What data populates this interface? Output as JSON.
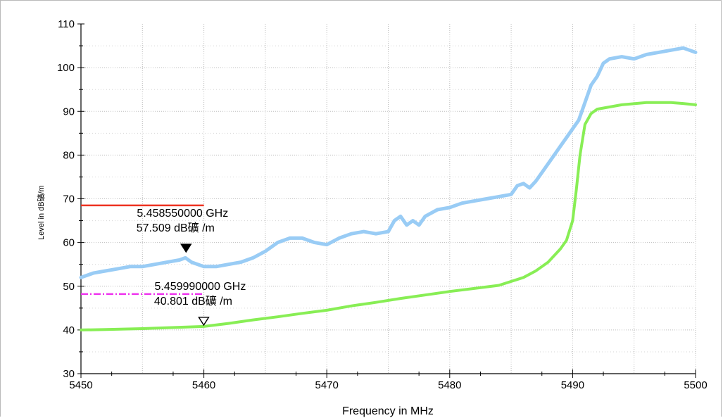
{
  "chart_data": {
    "type": "line",
    "xlabel": "Frequency in MHz",
    "ylabel": "Level in dB礦/m",
    "xlim": [
      5450,
      5500
    ],
    "ylim": [
      30,
      110
    ],
    "x_ticks": [
      "5450",
      "5460",
      "5470",
      "5480",
      "5490",
      "5500"
    ],
    "y_ticks": [
      "30",
      "40",
      "50",
      "60",
      "70",
      "80",
      "90",
      "100",
      "110"
    ],
    "grid": true,
    "series": [
      {
        "color": "#99ccf5",
        "x": [
          5450,
          5451,
          5452,
          5453,
          5454,
          5455,
          5456,
          5457,
          5458,
          5458.5,
          5459,
          5460,
          5461,
          5462,
          5463,
          5464,
          5465,
          5466,
          5467,
          5468,
          5469,
          5470,
          5471,
          5472,
          5473,
          5474,
          5475,
          5475.5,
          5476,
          5476.5,
          5477,
          5477.5,
          5478,
          5479,
          5480,
          5481,
          5482,
          5483,
          5484,
          5485,
          5485.5,
          5486,
          5486.5,
          5487,
          5487.5,
          5488,
          5488.5,
          5489,
          5489.5,
          5490,
          5490.5,
          5491,
          5491.5,
          5492,
          5492.5,
          5493,
          5494,
          5495,
          5496,
          5497,
          5498,
          5499,
          5499.5,
          5500
        ],
        "values": [
          52,
          53,
          53.5,
          54,
          54.5,
          54.5,
          55,
          55.5,
          56,
          56.5,
          55.5,
          54.5,
          54.5,
          55,
          55.5,
          56.5,
          58,
          60,
          61,
          61,
          60,
          59.5,
          61,
          62,
          62.5,
          62,
          62.5,
          65,
          66,
          64,
          65,
          64,
          66,
          67.5,
          68,
          69,
          69.5,
          70,
          70.5,
          71,
          73,
          73.5,
          72.5,
          74,
          76,
          78,
          80,
          82,
          84,
          86,
          88,
          92,
          96,
          98,
          101,
          102,
          102.5,
          102,
          103,
          103.5,
          104,
          104.5,
          104,
          103.5
        ]
      },
      {
        "color": "#88ee55",
        "x": [
          5450,
          5452,
          5455,
          5458,
          5460,
          5462,
          5464,
          5466,
          5468,
          5470,
          5472,
          5474,
          5476,
          5478,
          5480,
          5482,
          5484,
          5486,
          5487,
          5488,
          5488.5,
          5489,
          5489.5,
          5490,
          5490.3,
          5490.6,
          5491,
          5491.5,
          5492,
          5493,
          5494,
          5496,
          5498,
          5499,
          5500
        ],
        "values": [
          40,
          40.1,
          40.3,
          40.6,
          40.8,
          41.5,
          42.3,
          43,
          43.8,
          44.5,
          45.5,
          46.3,
          47.2,
          48,
          48.8,
          49.5,
          50.2,
          52,
          53.5,
          55.5,
          57,
          58.5,
          60.5,
          65,
          72,
          80,
          87,
          89.5,
          90.5,
          91,
          91.5,
          92,
          92,
          91.8,
          91.5
        ]
      }
    ],
    "limit_lines": [
      {
        "color": "#ee3322",
        "style": "solid",
        "x": [
          5450,
          5460
        ],
        "y": 68.5
      },
      {
        "color": "#ee33ee",
        "style": "dashdot",
        "x": [
          5450,
          5460
        ],
        "y": 48.2
      }
    ],
    "markers": [
      {
        "x": 5458.55,
        "y": 57.509,
        "style": "filled",
        "freq_label": "5.458550000 GHz",
        "level_label": "57.509  dB礦 /m"
      },
      {
        "x": 5459.99,
        "y": 40.801,
        "style": "open",
        "freq_label": "5.459990000 GHz",
        "level_label": "40.801  dB礦 /m"
      }
    ]
  }
}
